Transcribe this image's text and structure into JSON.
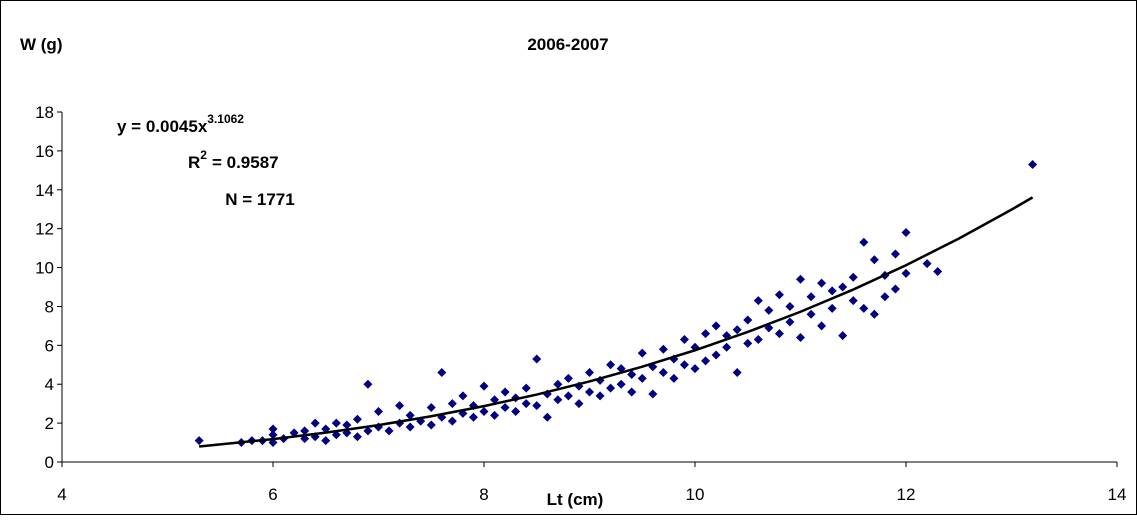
{
  "chart_data": {
    "type": "scatter",
    "title": "2006-2007",
    "x_label": "Lt (cm)",
    "y_label": "W (g)",
    "annotations": {
      "equation": {
        "base": "y = 0.0045x",
        "sup": "3.1062"
      },
      "r2": {
        "base": "R",
        "sup": "2",
        "rest": "= 0.9587"
      },
      "n": "N = 1771"
    },
    "xlim": [
      4,
      14
    ],
    "xticks": [
      4,
      6,
      8,
      10,
      12,
      14
    ],
    "ylim": [
      0,
      18
    ],
    "yticks": [
      0,
      2,
      4,
      6,
      8,
      10,
      12,
      14,
      16,
      18
    ],
    "grid": false,
    "series": [
      {
        "color": "#000080",
        "x": [
          5.3,
          5.7,
          5.8,
          5.9,
          6.0,
          6.0,
          6.0,
          6.1,
          6.2,
          6.3,
          6.3,
          6.4,
          6.4,
          6.5,
          6.5,
          6.6,
          6.6,
          6.7,
          6.7,
          6.8,
          6.8,
          6.9,
          6.9,
          7.0,
          7.0,
          7.1,
          7.2,
          7.2,
          7.3,
          7.3,
          7.4,
          7.5,
          7.5,
          7.6,
          7.6,
          7.7,
          7.7,
          7.8,
          7.8,
          7.9,
          7.9,
          8.0,
          8.0,
          8.1,
          8.1,
          8.2,
          8.2,
          8.3,
          8.3,
          8.4,
          8.4,
          8.5,
          8.5,
          8.6,
          8.6,
          8.7,
          8.7,
          8.8,
          8.8,
          8.9,
          8.9,
          9.0,
          9.0,
          9.1,
          9.1,
          9.2,
          9.2,
          9.3,
          9.3,
          9.4,
          9.4,
          9.5,
          9.5,
          9.6,
          9.6,
          9.7,
          9.7,
          9.8,
          9.8,
          9.9,
          9.9,
          10.0,
          10.0,
          10.1,
          10.1,
          10.2,
          10.2,
          10.3,
          10.3,
          10.4,
          10.4,
          10.5,
          10.5,
          10.6,
          10.6,
          10.7,
          10.7,
          10.8,
          10.8,
          10.9,
          10.9,
          11.0,
          11.0,
          11.1,
          11.1,
          11.2,
          11.2,
          11.3,
          11.3,
          11.4,
          11.4,
          11.5,
          11.5,
          11.6,
          11.6,
          11.7,
          11.7,
          11.8,
          11.8,
          11.9,
          11.9,
          12.0,
          12.0,
          12.2,
          12.3,
          13.2
        ],
        "values": [
          1.1,
          1.0,
          1.1,
          1.1,
          1.0,
          1.4,
          1.7,
          1.2,
          1.5,
          1.2,
          1.6,
          1.3,
          2.0,
          1.1,
          1.7,
          1.4,
          2.0,
          1.5,
          1.9,
          1.3,
          2.2,
          1.6,
          4.0,
          1.8,
          2.6,
          1.6,
          2.0,
          2.9,
          1.8,
          2.4,
          2.1,
          1.9,
          2.8,
          2.3,
          4.6,
          2.1,
          3.0,
          2.5,
          3.4,
          2.3,
          2.9,
          2.6,
          3.9,
          2.4,
          3.2,
          2.8,
          3.6,
          2.6,
          3.3,
          3.0,
          3.8,
          2.9,
          5.3,
          2.3,
          3.5,
          3.2,
          4.0,
          3.4,
          4.3,
          3.0,
          3.9,
          3.6,
          4.6,
          3.4,
          4.2,
          3.8,
          5.0,
          4.0,
          4.8,
          3.6,
          4.5,
          4.3,
          5.6,
          3.5,
          4.9,
          4.6,
          5.8,
          4.3,
          5.3,
          5.0,
          6.3,
          4.8,
          5.9,
          5.2,
          6.6,
          5.5,
          7.0,
          5.9,
          6.5,
          4.6,
          6.8,
          6.1,
          7.3,
          6.3,
          8.3,
          6.9,
          7.8,
          6.6,
          8.6,
          7.2,
          8.0,
          6.4,
          9.4,
          7.6,
          8.5,
          7.0,
          9.2,
          7.9,
          8.8,
          6.5,
          9.0,
          8.3,
          9.5,
          7.9,
          11.3,
          7.6,
          10.4,
          8.5,
          9.6,
          8.9,
          10.7,
          9.7,
          11.8,
          10.2,
          9.8,
          15.3
        ]
      },
      {
        "type": "line",
        "color": "#000000",
        "x": [
          5.3,
          6,
          6.5,
          7,
          7.5,
          8,
          8.5,
          9,
          9.5,
          10,
          10.5,
          11,
          11.5,
          12,
          12.5,
          13,
          13.2
        ],
        "values": [
          0.8,
          1.176,
          1.508,
          1.898,
          2.351,
          2.873,
          3.469,
          4.143,
          4.9,
          5.747,
          6.687,
          7.727,
          8.869,
          10.12,
          11.49,
          12.98,
          13.61
        ]
      }
    ]
  }
}
